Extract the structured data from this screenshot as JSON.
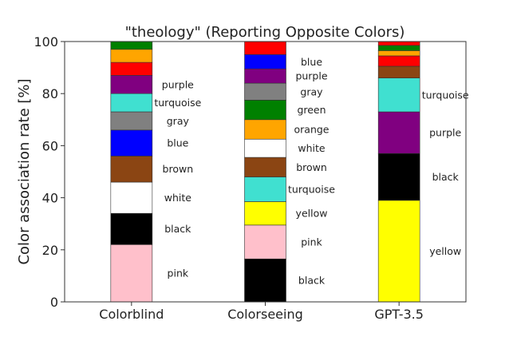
{
  "chart_data": {
    "type": "bar",
    "stacked": true,
    "title": "\"theology\" (Reporting Opposite Colors)",
    "xlabel": "",
    "ylabel": "Color association rate [%]",
    "ylim": [
      0,
      100
    ],
    "yticks": [
      0,
      20,
      40,
      60,
      80,
      100
    ],
    "grid": false,
    "categories": [
      "Colorblind",
      "Colorseeing",
      "GPT-3.5"
    ],
    "bars": [
      {
        "category": "Colorblind",
        "segments": [
          {
            "label": "pink",
            "value": 22,
            "color": "#ffc0cb"
          },
          {
            "label": "black",
            "value": 12,
            "color": "#000000"
          },
          {
            "label": "white",
            "value": 12,
            "color": "#ffffff"
          },
          {
            "label": "brown",
            "value": 10,
            "color": "#8b4513"
          },
          {
            "label": "blue",
            "value": 10,
            "color": "#0000ff"
          },
          {
            "label": "gray",
            "value": 7,
            "color": "#808080"
          },
          {
            "label": "turquoise",
            "value": 7,
            "color": "#40e0d0"
          },
          {
            "label": "purple",
            "value": 7,
            "color": "#800080"
          },
          {
            "label": "",
            "value": 5,
            "color": "#ff0000"
          },
          {
            "label": "",
            "value": 5,
            "color": "#ffa500"
          },
          {
            "label": "",
            "value": 3,
            "color": "#008000"
          }
        ]
      },
      {
        "category": "Colorseeing",
        "segments": [
          {
            "label": "black",
            "value": 16.5,
            "color": "#000000"
          },
          {
            "label": "pink",
            "value": 13,
            "color": "#ffc0cb"
          },
          {
            "label": "yellow",
            "value": 9,
            "color": "#ffff00"
          },
          {
            "label": "turquoise",
            "value": 9.5,
            "color": "#40e0d0"
          },
          {
            "label": "brown",
            "value": 7.5,
            "color": "#8b4513"
          },
          {
            "label": "white",
            "value": 7,
            "color": "#ffffff"
          },
          {
            "label": "orange",
            "value": 7.5,
            "color": "#ffa500"
          },
          {
            "label": "green",
            "value": 7.5,
            "color": "#008000"
          },
          {
            "label": "gray",
            "value": 6.5,
            "color": "#808080"
          },
          {
            "label": "purple",
            "value": 5.5,
            "color": "#800080"
          },
          {
            "label": "blue",
            "value": 5.5,
            "color": "#0000ff"
          },
          {
            "label": "",
            "value": 5,
            "color": "#ff0000"
          }
        ]
      },
      {
        "category": "GPT-3.5",
        "segments": [
          {
            "label": "yellow",
            "value": 39,
            "color": "#ffff00"
          },
          {
            "label": "black",
            "value": 18,
            "color": "#000000"
          },
          {
            "label": "purple",
            "value": 16,
            "color": "#800080"
          },
          {
            "label": "turquoise",
            "value": 13,
            "color": "#40e0d0"
          },
          {
            "label": "",
            "value": 4.5,
            "color": "#8b4513"
          },
          {
            "label": "",
            "value": 4,
            "color": "#ff0000"
          },
          {
            "label": "",
            "value": 2,
            "color": "#ffa500"
          },
          {
            "label": "",
            "value": 2,
            "color": "#008000"
          },
          {
            "label": "",
            "value": 1.5,
            "color": "#ff0000"
          }
        ]
      }
    ]
  }
}
